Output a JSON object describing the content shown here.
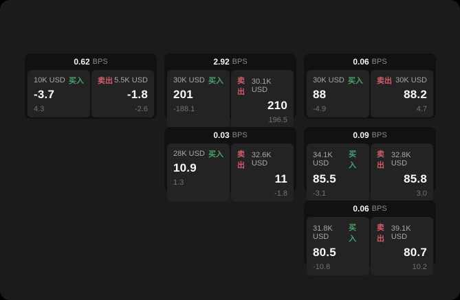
{
  "labels": {
    "bps_unit": "BPS",
    "buy": "买入",
    "sell": "卖出"
  },
  "colors": {
    "buy_green": "#4aa06b",
    "sell_red": "#cf5d68",
    "panel_bg": "#1b1b1b",
    "card_bg": "#111111",
    "tile_bg": "#232323"
  },
  "cards": [
    {
      "row": 1,
      "col": 1,
      "bps": "0.62",
      "buy": {
        "amount": "10K USD",
        "value": "-3.7",
        "sub": "4.3"
      },
      "sell": {
        "amount": "5.5K USD",
        "value": "-1.8",
        "sub": "-2.6"
      }
    },
    {
      "row": 1,
      "col": 2,
      "bps": "2.92",
      "buy": {
        "amount": "30K USD",
        "value": "201",
        "sub": "-188.1"
      },
      "sell": {
        "amount": "30.1K USD",
        "value": "210",
        "sub": "196.5"
      }
    },
    {
      "row": 1,
      "col": 3,
      "bps": "0.06",
      "buy": {
        "amount": "30K USD",
        "value": "88",
        "sub": "-4.9"
      },
      "sell": {
        "amount": "30K USD",
        "value": "88.2",
        "sub": "4.7"
      }
    },
    {
      "row": 2,
      "col": 2,
      "bps": "0.03",
      "buy": {
        "amount": "28K USD",
        "value": "10.9",
        "sub": "1.3"
      },
      "sell": {
        "amount": "32.6K USD",
        "value": "11",
        "sub": "-1.8"
      }
    },
    {
      "row": 2,
      "col": 3,
      "bps": "0.09",
      "buy": {
        "amount": "34.1K USD",
        "value": "85.5",
        "sub": "-3.1"
      },
      "sell": {
        "amount": "32.8K USD",
        "value": "85.8",
        "sub": "3.0"
      }
    },
    {
      "row": 3,
      "col": 3,
      "bps": "0.06",
      "buy": {
        "amount": "31.8K USD",
        "value": "80.5",
        "sub": "-10.8"
      },
      "sell": {
        "amount": "39.1K USD",
        "value": "80.7",
        "sub": "10.2"
      }
    }
  ]
}
